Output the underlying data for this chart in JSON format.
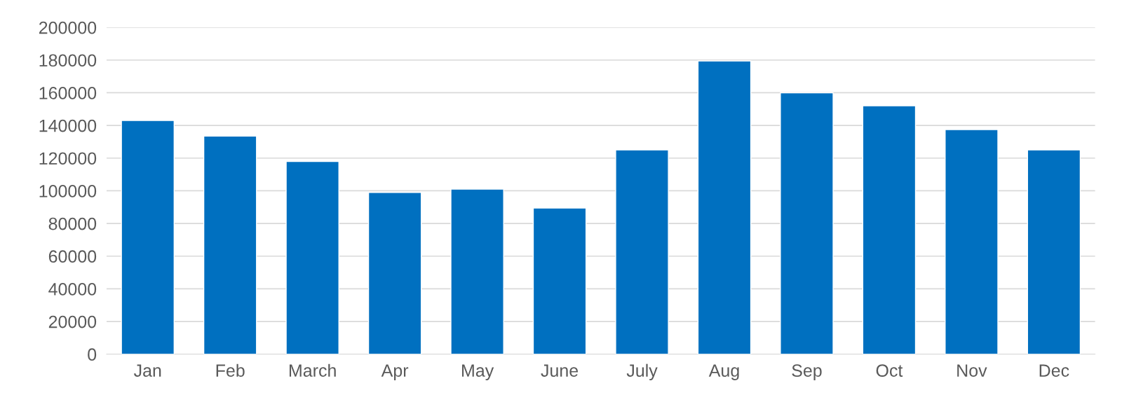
{
  "chart_data": {
    "type": "bar",
    "categories": [
      "Jan",
      "Feb",
      "March",
      "Apr",
      "May",
      "June",
      "July",
      "Aug",
      "Sep",
      "Oct",
      "Nov",
      "Dec"
    ],
    "values": [
      143000,
      133500,
      118000,
      99000,
      101000,
      89500,
      125000,
      179500,
      160000,
      152000,
      137500,
      125000
    ],
    "color": "#0070c0",
    "ylim": [
      0,
      200000
    ],
    "yticks": [
      0,
      20000,
      40000,
      60000,
      80000,
      100000,
      120000,
      140000,
      160000,
      180000,
      200000
    ],
    "grid": "y"
  }
}
